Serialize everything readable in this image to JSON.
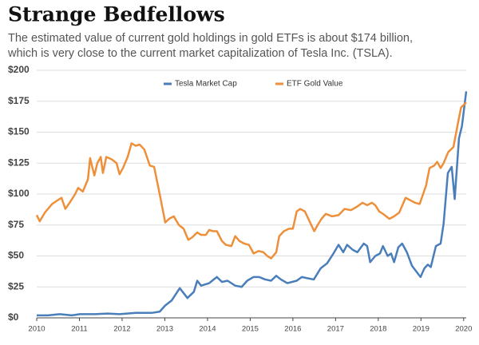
{
  "chart_data": {
    "type": "line",
    "title": "Strange Bedfellows",
    "subtitle": [
      "The estimated value of current gold holdings in gold ETFs is about $174 billion,",
      "which is very close to the current market capitalization of Tesla Inc. (TSLA)."
    ],
    "xlim": [
      2010,
      2020.06
    ],
    "xticks": [
      2010,
      2011,
      2012,
      2013,
      2014,
      2015,
      2016,
      2017,
      2018,
      2019,
      2020
    ],
    "ylim": [
      0,
      200
    ],
    "yticks": [
      {
        "value": 0,
        "label": "$0"
      },
      {
        "value": 25,
        "label": "$25"
      },
      {
        "value": 50,
        "label": "$50"
      },
      {
        "value": 75,
        "label": "$75"
      },
      {
        "value": 100,
        "label": "$100"
      },
      {
        "value": 125,
        "label": "$125"
      },
      {
        "value": 150,
        "label": "$150"
      },
      {
        "value": 175,
        "label": "$175"
      },
      {
        "value": 200,
        "label": "$200"
      }
    ],
    "grid": true,
    "legend": "top",
    "series": [
      {
        "name": "Tesla Market Cap",
        "color": "#4a7ebb",
        "x": [
          2010.0,
          2010.26,
          2010.54,
          2010.82,
          2011.01,
          2011.38,
          2011.66,
          2011.94,
          2012.32,
          2012.69,
          2012.88,
          2013.01,
          2013.16,
          2013.35,
          2013.53,
          2013.68,
          2013.76,
          2013.85,
          2014.04,
          2014.11,
          2014.22,
          2014.34,
          2014.47,
          2014.65,
          2014.8,
          2014.93,
          2015.08,
          2015.21,
          2015.35,
          2015.49,
          2015.61,
          2015.72,
          2015.87,
          2016.09,
          2016.21,
          2016.34,
          2016.49,
          2016.65,
          2016.8,
          2016.95,
          2017.07,
          2017.18,
          2017.27,
          2017.4,
          2017.51,
          2017.66,
          2017.74,
          2017.81,
          2017.93,
          2018.04,
          2018.11,
          2018.22,
          2018.3,
          2018.37,
          2018.47,
          2018.56,
          2018.67,
          2018.79,
          2018.9,
          2018.99,
          2019.08,
          2019.16,
          2019.23,
          2019.35,
          2019.46,
          2019.53,
          2019.63,
          2019.72,
          2019.79,
          2019.89,
          2019.96,
          2020.06
        ],
        "values": [
          2,
          2,
          3,
          2,
          3,
          3,
          3.5,
          3,
          4,
          4,
          5,
          10,
          14,
          24,
          16,
          21,
          30,
          26,
          28,
          30,
          33,
          29,
          30,
          26,
          25,
          30,
          33,
          33,
          31,
          30,
          34,
          31,
          28,
          30,
          33,
          32,
          31,
          40,
          44,
          52,
          59,
          53,
          59,
          55,
          53,
          60,
          58,
          45,
          50,
          52,
          58,
          50,
          52,
          45,
          57,
          60,
          53,
          42,
          37,
          33,
          40,
          43,
          41,
          58,
          60,
          76,
          117,
          122,
          96,
          145,
          155,
          183
        ]
      },
      {
        "name": "ETF Gold Value",
        "color": "#ee8f3a",
        "x": [
          2010.0,
          2010.07,
          2010.19,
          2010.36,
          2010.49,
          2010.58,
          2010.67,
          2010.79,
          2010.9,
          2010.97,
          2011.08,
          2011.2,
          2011.25,
          2011.35,
          2011.42,
          2011.5,
          2011.55,
          2011.63,
          2011.76,
          2011.87,
          2011.94,
          2012.02,
          2012.13,
          2012.22,
          2012.32,
          2012.41,
          2012.52,
          2012.65,
          2012.75,
          2012.88,
          2013.01,
          2013.1,
          2013.21,
          2013.33,
          2013.44,
          2013.55,
          2013.64,
          2013.76,
          2013.85,
          2013.96,
          2014.04,
          2014.13,
          2014.22,
          2014.34,
          2014.43,
          2014.56,
          2014.65,
          2014.75,
          2014.86,
          2014.97,
          2015.08,
          2015.2,
          2015.31,
          2015.4,
          2015.49,
          2015.61,
          2015.68,
          2015.79,
          2015.91,
          2016.0,
          2016.09,
          2016.17,
          2016.28,
          2016.39,
          2016.5,
          2016.58,
          2016.67,
          2016.77,
          2016.92,
          2017.07,
          2017.21,
          2017.36,
          2017.51,
          2017.63,
          2017.74,
          2017.85,
          2017.93,
          2018.02,
          2018.11,
          2018.26,
          2018.37,
          2018.49,
          2018.64,
          2018.75,
          2018.86,
          2018.97,
          2019.05,
          2019.12,
          2019.2,
          2019.31,
          2019.38,
          2019.46,
          2019.53,
          2019.64,
          2019.76,
          2019.87,
          2019.94,
          2020.06
        ],
        "values": [
          83,
          78,
          85,
          92,
          95,
          97,
          88,
          94,
          100,
          105,
          102,
          112,
          129,
          115,
          125,
          130,
          117,
          130,
          128,
          125,
          116,
          121,
          130,
          141,
          139,
          140,
          136,
          123,
          122,
          100,
          77,
          80,
          82,
          75,
          72,
          63,
          65,
          69,
          67,
          67,
          71,
          70,
          70,
          62,
          59,
          58,
          66,
          62,
          60,
          59,
          52,
          54,
          53,
          50,
          48,
          53,
          66,
          70,
          72,
          72,
          86,
          88,
          86,
          78,
          70,
          75,
          80,
          84,
          82,
          83,
          88,
          87,
          90,
          93,
          91,
          93,
          91,
          86,
          84,
          80,
          82,
          85,
          97,
          95,
          93,
          92,
          100,
          107,
          121,
          123,
          126,
          121,
          125,
          134,
          138,
          158,
          170,
          174
        ]
      }
    ]
  }
}
